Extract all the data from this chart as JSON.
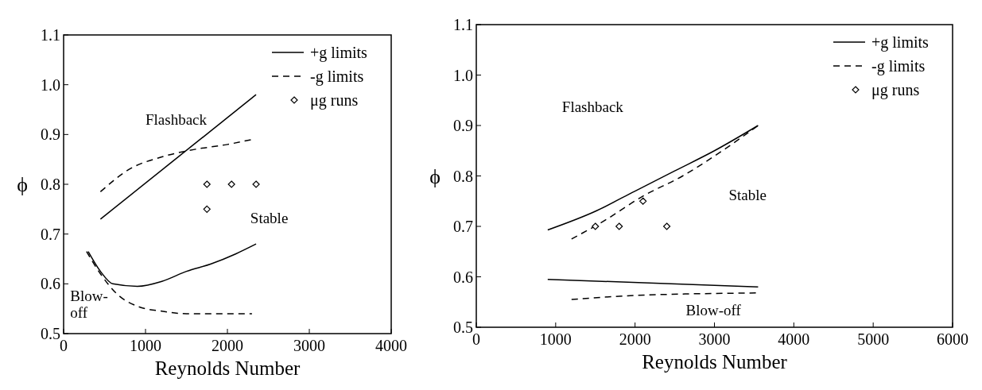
{
  "chart_data": [
    {
      "type": "line",
      "xlabel": "Reynolds Number",
      "ylabel": "ϕ",
      "xlim": [
        0,
        4000
      ],
      "ylim": [
        0.5,
        1.1
      ],
      "xticks": [
        0,
        1000,
        2000,
        3000,
        4000
      ],
      "yticks": [
        0.5,
        0.6,
        0.7,
        0.8,
        0.9,
        {
          "value": 1.0,
          "label": "1.0"
        },
        1.1
      ],
      "grid": false,
      "legend": "top right",
      "series": [
        {
          "name": "+g limits",
          "color": "#000000",
          "line_style": "solid",
          "x": [
            450,
            2350
          ],
          "values": [
            0.73,
            0.98
          ]
        },
        {
          "name": "-g limits",
          "color": "#000000",
          "line_style": "dashed",
          "x": [
            450,
            800,
            1200,
            1600,
            2000,
            2300
          ],
          "values": [
            0.785,
            0.83,
            0.855,
            0.87,
            0.88,
            0.89
          ]
        },
        {
          "name": "μg runs",
          "type": "scatter",
          "marker": "diamond",
          "color": "#000000",
          "x": [
            1750,
            2050,
            2350,
            1750
          ],
          "values": [
            0.8,
            0.8,
            0.8,
            0.75
          ]
        },
        {
          "color": "#000000",
          "line_style": "solid",
          "x": [
            300,
            450,
            600,
            900,
            1200,
            1500,
            1800,
            2100,
            2350
          ],
          "values": [
            0.665,
            0.625,
            0.6,
            0.595,
            0.605,
            0.625,
            0.64,
            0.66,
            0.68
          ]
        },
        {
          "color": "#000000",
          "line_style": "dashed",
          "x": [
            280,
            450,
            650,
            900,
            1200,
            1500,
            2300
          ],
          "values": [
            0.665,
            0.62,
            0.58,
            0.555,
            0.545,
            0.54,
            0.54
          ]
        }
      ],
      "annotations": [
        "Flashback",
        "Stable",
        "Blow-\noff"
      ]
    },
    {
      "type": "line",
      "xlabel": "Reynolds Number",
      "ylabel": "ϕ",
      "xlim": [
        0,
        6000
      ],
      "ylim": [
        0.5,
        1.1
      ],
      "xticks": [
        0,
        1000,
        2000,
        3000,
        4000,
        5000,
        6000
      ],
      "yticks": [
        0.5,
        0.6,
        0.7,
        0.8,
        0.9,
        {
          "value": 1.0,
          "label": "1.0"
        },
        1.1
      ],
      "grid": false,
      "legend": "top right",
      "series": [
        {
          "name": "+g limits",
          "color": "#000000",
          "line_style": "solid",
          "x": [
            900,
            1500,
            2000,
            2500,
            3000,
            3550
          ],
          "values": [
            0.693,
            0.73,
            0.77,
            0.81,
            0.85,
            0.9
          ]
        },
        {
          "name": "-g limits",
          "color": "#000000",
          "line_style": "dashed",
          "x": [
            1200,
            1600,
            2100,
            2600,
            3100,
            3550
          ],
          "values": [
            0.675,
            0.71,
            0.76,
            0.8,
            0.85,
            0.9
          ]
        },
        {
          "name": "μg runs",
          "type": "scatter",
          "marker": "diamond",
          "color": "#000000",
          "x": [
            1500,
            1800,
            2100,
            2400
          ],
          "values": [
            0.7,
            0.7,
            0.75,
            0.7
          ]
        },
        {
          "color": "#000000",
          "line_style": "solid",
          "x": [
            900,
            3550
          ],
          "values": [
            0.595,
            0.58
          ]
        },
        {
          "color": "#000000",
          "line_style": "dashed",
          "x": [
            1200,
            2000,
            3550
          ],
          "values": [
            0.555,
            0.563,
            0.568
          ]
        }
      ],
      "annotations": [
        "Flashback",
        "Stable",
        "Blow-off"
      ]
    }
  ]
}
